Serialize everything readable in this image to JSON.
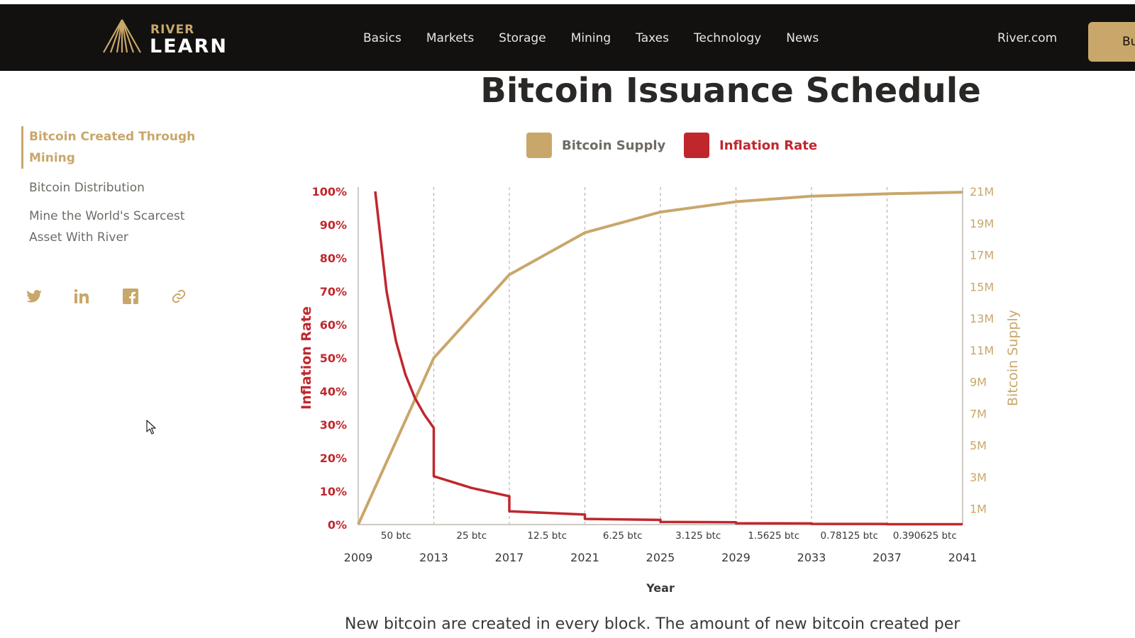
{
  "header": {
    "logo_top": "RIVER",
    "logo_bottom": "LEARN",
    "nav": [
      "Basics",
      "Markets",
      "Storage",
      "Mining",
      "Taxes",
      "Technology",
      "News"
    ],
    "site_link": "River.com",
    "buy_label": "Buy"
  },
  "sidebar": {
    "active": "Bitcoin Created Through Mining",
    "items": [
      "Bitcoin Distribution",
      "Mine the World's Scarcest Asset With River"
    ],
    "social_icons": [
      "twitter-icon",
      "linkedin-icon",
      "facebook-icon",
      "link-icon"
    ]
  },
  "colors": {
    "gold": "#c9a76a",
    "red": "#c0272d",
    "dark": "#121110"
  },
  "chart_data": {
    "type": "line",
    "title": "Bitcoin Issuance Schedule",
    "legend": [
      "Bitcoin Supply",
      "Inflation Rate"
    ],
    "legend_position": "top-center",
    "xlabel": "Year",
    "y_left_label": "Inflation Rate",
    "y_right_label": "Bitcoin Supply",
    "x_ticks": [
      "2009",
      "2013",
      "2017",
      "2021",
      "2025",
      "2029",
      "2033",
      "2037",
      "2041"
    ],
    "x_range": [
      2009,
      2041
    ],
    "reward_labels": [
      "50 btc",
      "25 btc",
      "12.5 btc",
      "6.25 btc",
      "3.125 btc",
      "1.5625 btc",
      "0.78125 btc",
      "0.390625 btc"
    ],
    "y_left_ticks": [
      "0%",
      "10%",
      "20%",
      "30%",
      "40%",
      "50%",
      "60%",
      "70%",
      "80%",
      "90%",
      "100%"
    ],
    "y_left_range": [
      0,
      100
    ],
    "y_right_ticks": [
      "1M",
      "3M",
      "5M",
      "7M",
      "9M",
      "11M",
      "13M",
      "15M",
      "17M",
      "19M",
      "21M"
    ],
    "y_right_range": [
      0,
      21
    ],
    "vertical_gridlines": "dashed at halving years",
    "series": [
      {
        "name": "Bitcoin Supply",
        "x": [
          2009,
          2013,
          2017,
          2021,
          2025,
          2029,
          2033,
          2037,
          2041
        ],
        "y": [
          0,
          10.5,
          15.75,
          18.4,
          19.7,
          20.35,
          20.7,
          20.85,
          20.95
        ]
      },
      {
        "name": "Inflation Rate",
        "x": [
          2009.9,
          2010.5,
          2011,
          2011.5,
          2012,
          2012.5,
          2013,
          2013,
          2015,
          2017,
          2017,
          2021,
          2021,
          2025,
          2025,
          2029,
          2029,
          2033,
          2033,
          2037,
          2037,
          2041
        ],
        "y": [
          100,
          70,
          55,
          45,
          38,
          33,
          29,
          14.5,
          11,
          8.5,
          4,
          3,
          1.7,
          1.4,
          0.8,
          0.7,
          0.4,
          0.35,
          0.2,
          0.18,
          0.1,
          0.1
        ]
      }
    ]
  },
  "body_text": "New bitcoin are created in every block. The amount of new bitcoin created per"
}
